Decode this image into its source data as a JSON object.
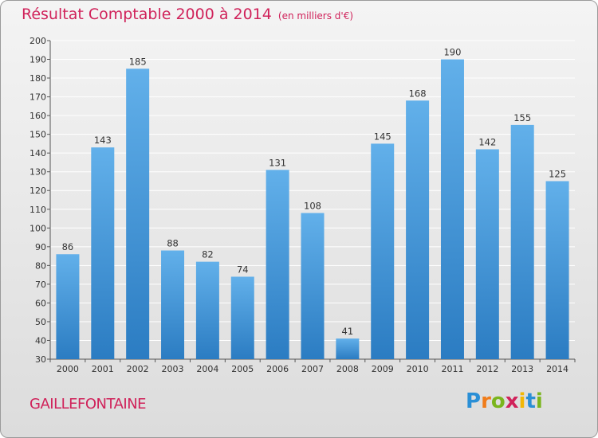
{
  "title": "Résultat Comptable 2000 à 2014",
  "subtitle": "(en milliers d'€)",
  "commune": "GAILLEFONTAINE",
  "logo": {
    "letters": [
      "P",
      "r",
      "o",
      "x",
      "i",
      "t",
      "i"
    ],
    "colors": [
      "#2a8fd6",
      "#f07c1a",
      "#7ab51d",
      "#d0225a",
      "#f2b705",
      "#2a8fd6",
      "#7ab51d"
    ]
  },
  "colors": {
    "bar": "#3b8fd4",
    "bar_light": "#62b0ea",
    "title": "#d0225a"
  },
  "chart_data": {
    "type": "bar",
    "categories": [
      "2000",
      "2001",
      "2002",
      "2003",
      "2004",
      "2005",
      "2006",
      "2007",
      "2008",
      "2009",
      "2010",
      "2011",
      "2012",
      "2013",
      "2014"
    ],
    "values": [
      86,
      143,
      185,
      88,
      82,
      74,
      131,
      108,
      41,
      145,
      168,
      190,
      142,
      155,
      125
    ],
    "ylim": [
      30,
      200
    ],
    "yticks": [
      30,
      40,
      50,
      60,
      70,
      80,
      90,
      100,
      110,
      120,
      130,
      140,
      150,
      160,
      170,
      180,
      190,
      200
    ],
    "grid": true
  }
}
